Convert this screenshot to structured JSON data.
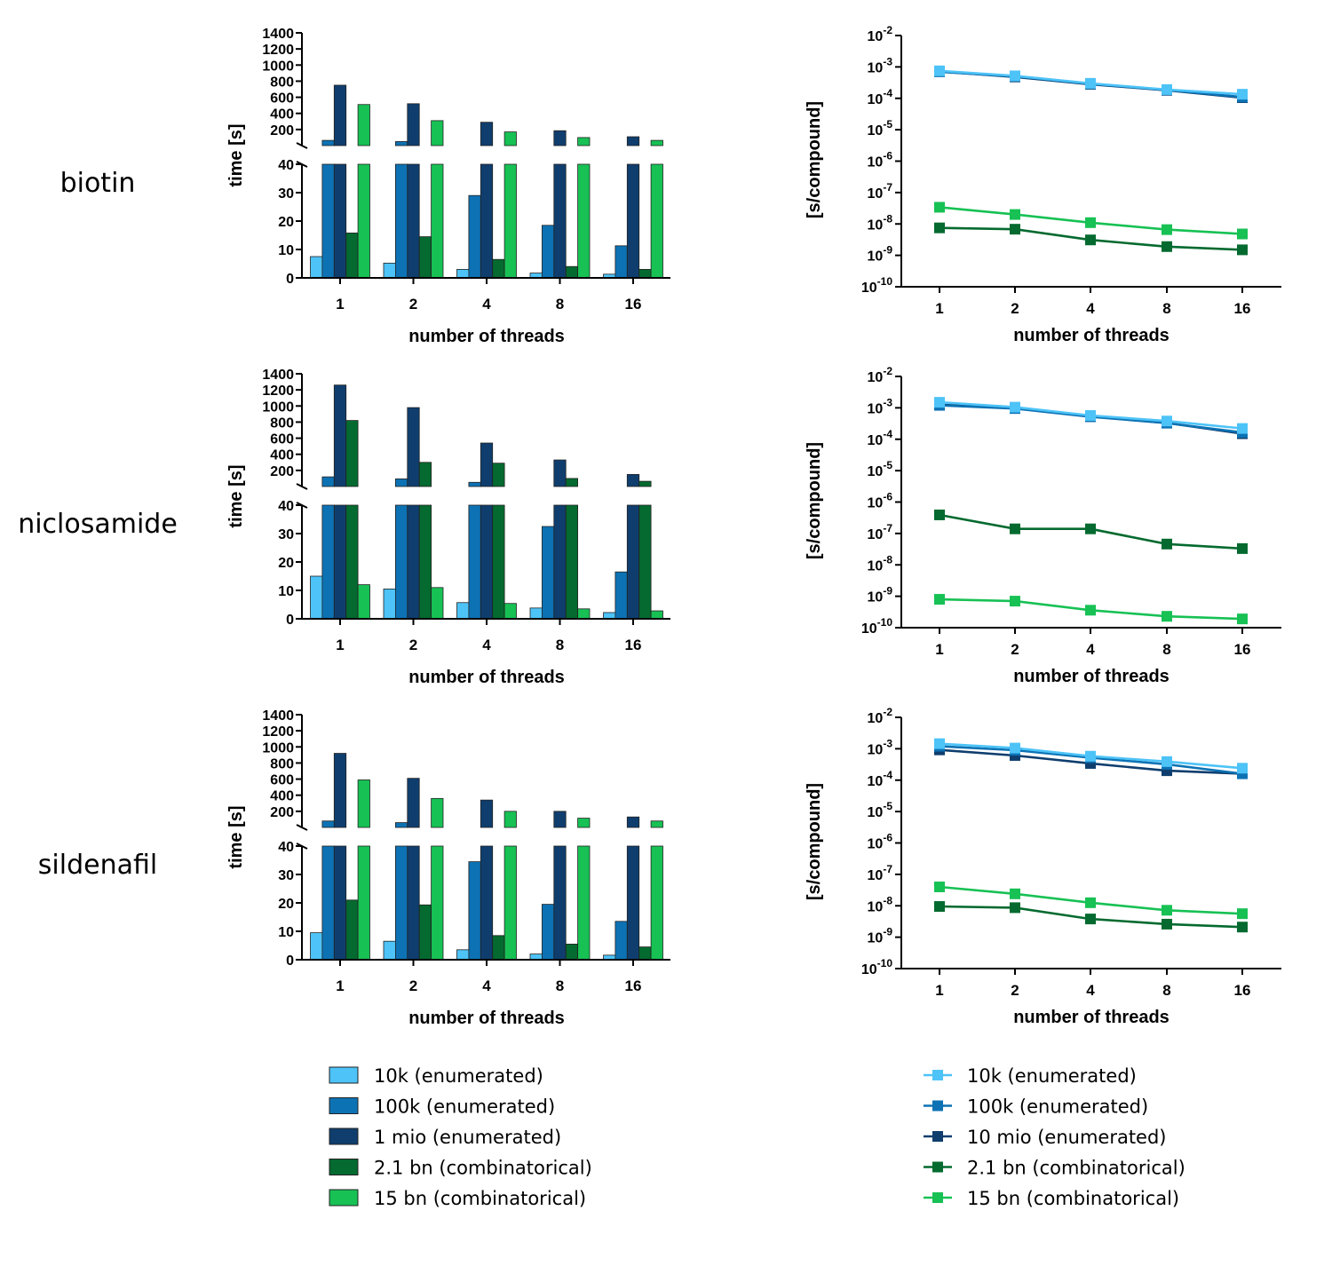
{
  "colors": {
    "10k": "#4dc3f7",
    "100k": "#0d72b4",
    "1mio": "#0f3e6e",
    "2.1bn": "#046a2f",
    "15bn": "#17c154"
  },
  "rows": [
    {
      "label": "biotin"
    },
    {
      "label": "niclosamide"
    },
    {
      "label": "sildenafil"
    }
  ],
  "bar_legend": [
    "10k (enumerated)",
    "100k (enumerated)",
    "1 mio (enumerated)",
    "2.1 bn (combinatorical)",
    "15 bn (combinatorical)"
  ],
  "line_legend": [
    "10k (enumerated)",
    "100k (enumerated)",
    "10 mio (enumerated)",
    "2.1 bn (combinatorical)",
    "15  bn (combinatorical)"
  ],
  "chart_data": [
    {
      "type": "bar",
      "row": "biotin",
      "categories": [
        "1",
        "2",
        "4",
        "8",
        "16"
      ],
      "xlabel": "number of threads",
      "ylabel": "time [s]",
      "axis_break": true,
      "ylim_lower": [
        0,
        40
      ],
      "ylim_upper": [
        0,
        1400
      ],
      "yticks_lower": [
        "0",
        "10",
        "20",
        "30",
        "40"
      ],
      "yticks_upper": [
        "200",
        "400",
        "600",
        "800",
        "1000",
        "1200",
        "1400"
      ],
      "series": [
        {
          "name": "10k (enumerated)",
          "color_key": "10k",
          "values": [
            7.5,
            5.2,
            3.0,
            1.7,
            1.3
          ]
        },
        {
          "name": "100k (enumerated)",
          "color_key": "100k",
          "values": [
            65,
            50,
            29,
            18.5,
            11.3
          ]
        },
        {
          "name": "1 mio (enumerated)",
          "color_key": "1mio",
          "values": [
            750,
            520,
            290,
            185,
            110
          ]
        },
        {
          "name": "2.1 bn (combinatorical)",
          "color_key": "2.1bn",
          "values": [
            15.8,
            14.5,
            6.5,
            4.0,
            3.0
          ]
        },
        {
          "name": "15 bn (combinatorical)",
          "color_key": "15bn",
          "values": [
            510,
            310,
            170,
            100,
            65
          ]
        }
      ]
    },
    {
      "type": "line",
      "row": "biotin",
      "scale": "log",
      "categories": [
        "1",
        "2",
        "4",
        "8",
        "16"
      ],
      "xlabel": "number of threads",
      "ylabel": "[s/compound]",
      "ylim_exp": [
        -10,
        -2
      ],
      "series": [
        {
          "name": "10k (enumerated)",
          "color_key": "10k",
          "values": [
            0.00075,
            0.00052,
            0.0003,
            0.00019,
            0.000135
          ]
        },
        {
          "name": "100k (enumerated)",
          "color_key": "100k",
          "values": [
            0.0007,
            0.0005,
            0.00029,
            0.000185,
            0.00011
          ]
        },
        {
          "name": "10 mio (enumerated)",
          "color_key": "1mio",
          "values": [
            0.00072,
            0.00048,
            0.00028,
            0.00018,
            0.000105
          ]
        },
        {
          "name": "2.1 bn (combinatorical)",
          "color_key": "2.1bn",
          "values": [
            7.5e-09,
            6.8e-09,
            3.1e-09,
            1.9e-09,
            1.5e-09
          ]
        },
        {
          "name": "15  bn (combinatorical)",
          "color_key": "15bn",
          "values": [
            3.4e-08,
            2e-08,
            1.1e-08,
            6.6e-09,
            4.8e-09
          ]
        }
      ]
    },
    {
      "type": "bar",
      "row": "niclosamide",
      "categories": [
        "1",
        "2",
        "4",
        "8",
        "16"
      ],
      "xlabel": "number of threads",
      "ylabel": "time [s]",
      "axis_break": true,
      "ylim_lower": [
        0,
        40
      ],
      "ylim_upper": [
        0,
        1400
      ],
      "yticks_lower": [
        "0",
        "10",
        "20",
        "30",
        "40"
      ],
      "yticks_upper": [
        "200",
        "400",
        "600",
        "800",
        "1000",
        "1200",
        "1400"
      ],
      "series": [
        {
          "name": "10k (enumerated)",
          "color_key": "10k",
          "values": [
            15.0,
            10.5,
            5.7,
            3.8,
            2.2
          ]
        },
        {
          "name": "100k (enumerated)",
          "color_key": "100k",
          "values": [
            120,
            95,
            52,
            32.5,
            16.5
          ]
        },
        {
          "name": "1 mio (enumerated)",
          "color_key": "1mio",
          "values": [
            1260,
            980,
            540,
            330,
            150
          ]
        },
        {
          "name": "2.1 bn (combinatorical)",
          "color_key": "2.1bn",
          "values": [
            820,
            300,
            290,
            100,
            65
          ]
        },
        {
          "name": "15 bn (combinatorical)",
          "color_key": "15bn",
          "values": [
            12.0,
            11.0,
            5.4,
            3.5,
            2.8
          ]
        }
      ]
    },
    {
      "type": "line",
      "row": "niclosamide",
      "scale": "log",
      "categories": [
        "1",
        "2",
        "4",
        "8",
        "16"
      ],
      "xlabel": "number of threads",
      "ylabel": "[s/compound]",
      "ylim_exp": [
        -10,
        -2
      ],
      "series": [
        {
          "name": "10k (enumerated)",
          "color_key": "10k",
          "values": [
            0.0015,
            0.00105,
            0.00057,
            0.00038,
            0.00022
          ]
        },
        {
          "name": "100k (enumerated)",
          "color_key": "100k",
          "values": [
            0.0012,
            0.00095,
            0.00052,
            0.000325,
            0.000165
          ]
        },
        {
          "name": "10 mio (enumerated)",
          "color_key": "1mio",
          "values": [
            0.00126,
            0.00098,
            0.00054,
            0.00033,
            0.00015
          ]
        },
        {
          "name": "2.1 bn (combinatorical)",
          "color_key": "2.1bn",
          "values": [
            3.9e-07,
            1.4e-07,
            1.4e-07,
            4.6e-08,
            3.3e-08
          ]
        },
        {
          "name": "15  bn (combinatorical)",
          "color_key": "15bn",
          "values": [
            8e-10,
            7e-10,
            3.6e-10,
            2.3e-10,
            1.9e-10
          ]
        }
      ]
    },
    {
      "type": "bar",
      "row": "sildenafil",
      "categories": [
        "1",
        "2",
        "4",
        "8",
        "16"
      ],
      "xlabel": "number of threads",
      "ylabel": "time [s]",
      "axis_break": true,
      "ylim_lower": [
        0,
        40
      ],
      "ylim_upper": [
        0,
        1400
      ],
      "yticks_lower": [
        "0",
        "10",
        "20",
        "30",
        "40"
      ],
      "yticks_upper": [
        "200",
        "400",
        "600",
        "800",
        "1000",
        "1200",
        "1400"
      ],
      "series": [
        {
          "name": "10k (enumerated)",
          "color_key": "10k",
          "values": [
            9.5,
            6.5,
            3.5,
            2.0,
            1.6
          ]
        },
        {
          "name": "100k (enumerated)",
          "color_key": "100k",
          "values": [
            80,
            60,
            34.5,
            19.5,
            13.5
          ]
        },
        {
          "name": "1 mio (enumerated)",
          "color_key": "1mio",
          "values": [
            920,
            610,
            340,
            200,
            130
          ]
        },
        {
          "name": "2.1 bn (combinatorical)",
          "color_key": "2.1bn",
          "values": [
            21.0,
            19.3,
            8.5,
            5.5,
            4.5
          ]
        },
        {
          "name": "15 bn (combinatorical)",
          "color_key": "15bn",
          "values": [
            590,
            360,
            200,
            115,
            80
          ]
        }
      ]
    },
    {
      "type": "line",
      "row": "sildenafil",
      "scale": "log",
      "categories": [
        "1",
        "2",
        "4",
        "8",
        "16"
      ],
      "xlabel": "number of threads",
      "ylabel": "[s/compound]",
      "ylim_exp": [
        -10,
        -2
      ],
      "series": [
        {
          "name": "10k (enumerated)",
          "color_key": "10k",
          "values": [
            0.00145,
            0.00105,
            0.00058,
            0.00039,
            0.00024
          ]
        },
        {
          "name": "100k (enumerated)",
          "color_key": "100k",
          "values": [
            0.0012,
            0.0009,
            0.00052,
            0.00032,
            0.00016
          ]
        },
        {
          "name": "10 mio (enumerated)",
          "color_key": "1mio",
          "values": [
            0.00092,
            0.00061,
            0.00034,
            0.0002,
            0.00016
          ]
        },
        {
          "name": "2.1 bn (combinatorical)",
          "color_key": "2.1bn",
          "values": [
            9.5e-09,
            8.7e-09,
            3.8e-09,
            2.6e-09,
            2.1e-09
          ]
        },
        {
          "name": "15  bn (combinatorical)",
          "color_key": "15bn",
          "values": [
            4e-08,
            2.4e-08,
            1.25e-08,
            7.2e-09,
            5.6e-09
          ]
        }
      ]
    }
  ]
}
